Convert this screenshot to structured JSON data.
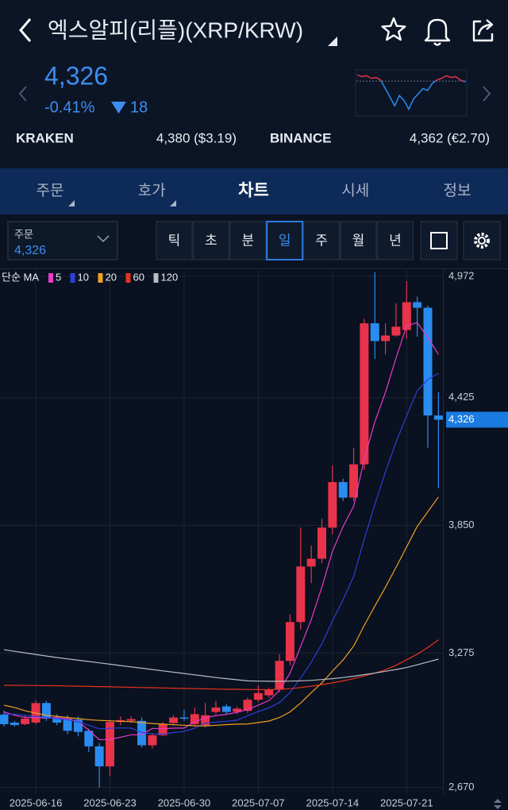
{
  "header": {
    "title": "엑스알피(리플)(XRP/KRW)"
  },
  "quote": {
    "price": "4,326",
    "change_rate": "-0.41%",
    "change": "18"
  },
  "mini_chart": {
    "values": [
      4380,
      4370,
      4375,
      4360,
      4365,
      4350,
      4300,
      4250,
      4200,
      4260,
      4230,
      4180,
      4240,
      4270,
      4300,
      4290,
      4330,
      4350,
      4360,
      4375,
      4365,
      4370,
      4350,
      4340
    ],
    "base": 4344,
    "ylim": [
      4150,
      4400
    ]
  },
  "exchanges": [
    {
      "name": "KRAKEN",
      "price": "4,380 ($3.19)"
    },
    {
      "name": "BINANCE",
      "price": "4,362 (€2.70)"
    }
  ],
  "tabs": {
    "items": [
      "주문",
      "호가",
      "차트",
      "시세",
      "정보"
    ],
    "active": 2
  },
  "order_selector": {
    "label": "주문",
    "value": "4,326"
  },
  "periods": {
    "items": [
      "틱",
      "초",
      "분",
      "일",
      "주",
      "월",
      "년"
    ],
    "active": 3
  },
  "chart_data": {
    "type": "candlestick",
    "legend_title": "단순 MA",
    "categories": [
      null,
      null,
      null,
      "2025-06-16",
      null,
      null,
      null,
      null,
      null,
      null,
      "2025-06-23",
      null,
      null,
      null,
      null,
      null,
      null,
      "2025-06-30",
      null,
      null,
      null,
      null,
      null,
      null,
      "2025-07-07",
      null,
      null,
      null,
      null,
      null,
      null,
      "2025-07-14",
      null,
      null,
      null,
      null,
      null,
      null,
      "2025-07-21",
      null,
      null,
      null
    ],
    "open": [
      2998,
      2962,
      2955,
      2962,
      3050,
      2980,
      2980,
      2975,
      2925,
      2855,
      2765,
      2965,
      2970,
      2970,
      2860,
      2905,
      2960,
      2985,
      2955,
      2950,
      3010,
      3035,
      3010,
      3015,
      3065,
      3085,
      3110,
      3240,
      3415,
      3665,
      3700,
      3840,
      4045,
      3975,
      4125,
      4760,
      4680,
      4705,
      4730,
      4855,
      4830,
      4345
    ],
    "high": [
      3016,
      2970,
      2995,
      3062,
      3060,
      3000,
      2995,
      2990,
      2935,
      2870,
      2975,
      2990,
      2990,
      2985,
      2915,
      2965,
      2995,
      3020,
      3030,
      3050,
      3060,
      3045,
      3035,
      3075,
      3130,
      3120,
      3270,
      3450,
      3840,
      3760,
      3880,
      4120,
      4060,
      4200,
      4780,
      4990,
      4760,
      4850,
      4950,
      4880,
      4840,
      4450
    ],
    "low": [
      2944,
      2944,
      2950,
      2955,
      2970,
      2950,
      2910,
      2900,
      2830,
      2670,
      2720,
      2950,
      2960,
      2850,
      2845,
      2900,
      2950,
      2970,
      2945,
      2940,
      3000,
      3000,
      3000,
      3005,
      3055,
      3075,
      3100,
      3220,
      3380,
      3590,
      3680,
      3810,
      3960,
      3960,
      4100,
      4600,
      4620,
      4700,
      4690,
      4700,
      4200,
      4017
    ],
    "close": [
      2955,
      2951,
      2980,
      3050,
      2980,
      2962,
      2925,
      2920,
      2855,
      2765,
      2965,
      2973,
      2978,
      2860,
      2905,
      2955,
      2985,
      2980,
      3000,
      2995,
      3030,
      3010,
      3025,
      3065,
      3095,
      3110,
      3240,
      3415,
      3665,
      3700,
      3840,
      4045,
      3975,
      4125,
      4760,
      4680,
      4705,
      4745,
      4855,
      4830,
      4345,
      4326
    ],
    "up_color": "#e8334a",
    "down_color": "#2a8cf0",
    "series": [
      {
        "name": "5",
        "color": "#e83cc8",
        "values": [
          3010,
          2995,
          2985,
          2985,
          2983,
          2985,
          2979,
          2967,
          2928,
          2885,
          2886,
          2896,
          2907,
          2908,
          2936,
          2934,
          2937,
          2937,
          2965,
          2983,
          2994,
          2999,
          3008,
          3021,
          3041,
          3061,
          3107,
          3185,
          3305,
          3426,
          3572,
          3733,
          3845,
          3937,
          4149,
          4317,
          4449,
          4603,
          4749,
          4763,
          4696,
          4620
        ]
      },
      {
        "name": "10",
        "color": "#2c3fd8",
        "values": [
          3000,
          3000,
          2995,
          2990,
          2985,
          2980,
          2975,
          2965,
          2950,
          2934,
          2936,
          2938,
          2937,
          2918,
          2911,
          2910,
          2917,
          2922,
          2937,
          2960,
          2964,
          2968,
          2973,
          2993,
          3012,
          3028,
          3053,
          3097,
          3163,
          3234,
          3317,
          3420,
          3515,
          3621,
          3788,
          3945,
          4091,
          4224,
          4343,
          4456,
          4507,
          4535
        ]
      },
      {
        "name": "20",
        "color": "#f0a020",
        "values": [
          3040,
          3030,
          3015,
          3005,
          2995,
          2990,
          2985,
          2980,
          2975,
          2972,
          2970,
          2968,
          2966,
          2962,
          2958,
          2955,
          2952,
          2950,
          2948,
          2947,
          2950,
          2953,
          2955,
          2956,
          2962,
          2969,
          2985,
          3010,
          3050,
          3097,
          3141,
          3194,
          3244,
          3307,
          3400,
          3487,
          3572,
          3661,
          3753,
          3845,
          3912,
          3978
        ]
      },
      {
        "name": "60",
        "color": "#e8331c",
        "values": [
          3130,
          3130,
          3129,
          3129,
          3128,
          3128,
          3127,
          3126,
          3125,
          3124,
          3123,
          3122,
          3121,
          3120,
          3119,
          3118,
          3117,
          3116,
          3115,
          3114,
          3113,
          3112,
          3112,
          3111,
          3111,
          3110,
          3112,
          3115,
          3120,
          3126,
          3133,
          3141,
          3150,
          3160,
          3172,
          3185,
          3200,
          3220,
          3245,
          3270,
          3300,
          3335
        ]
      },
      {
        "name": "120",
        "color": "#b8bcc4",
        "values": [
          3290,
          3283,
          3276,
          3269,
          3262,
          3255,
          3249,
          3243,
          3237,
          3231,
          3225,
          3219,
          3213,
          3207,
          3201,
          3195,
          3189,
          3183,
          3177,
          3171,
          3165,
          3160,
          3155,
          3150,
          3149,
          3148,
          3148,
          3149,
          3150,
          3152,
          3156,
          3160,
          3165,
          3171,
          3178,
          3185,
          3193,
          3201,
          3210,
          3222,
          3235,
          3248
        ]
      }
    ],
    "last_price": {
      "value": 4326,
      "label": "4,326"
    },
    "ylim": [
      2640,
      5000
    ],
    "yticks": [
      {
        "value": 4972,
        "label": "4,972"
      },
      {
        "value": 4425,
        "label": "4,425"
      },
      {
        "value": 3850,
        "label": "3,850"
      },
      {
        "value": 3275,
        "label": "3,275"
      },
      {
        "value": 2670,
        "label": "2,670"
      }
    ],
    "grid": true
  }
}
